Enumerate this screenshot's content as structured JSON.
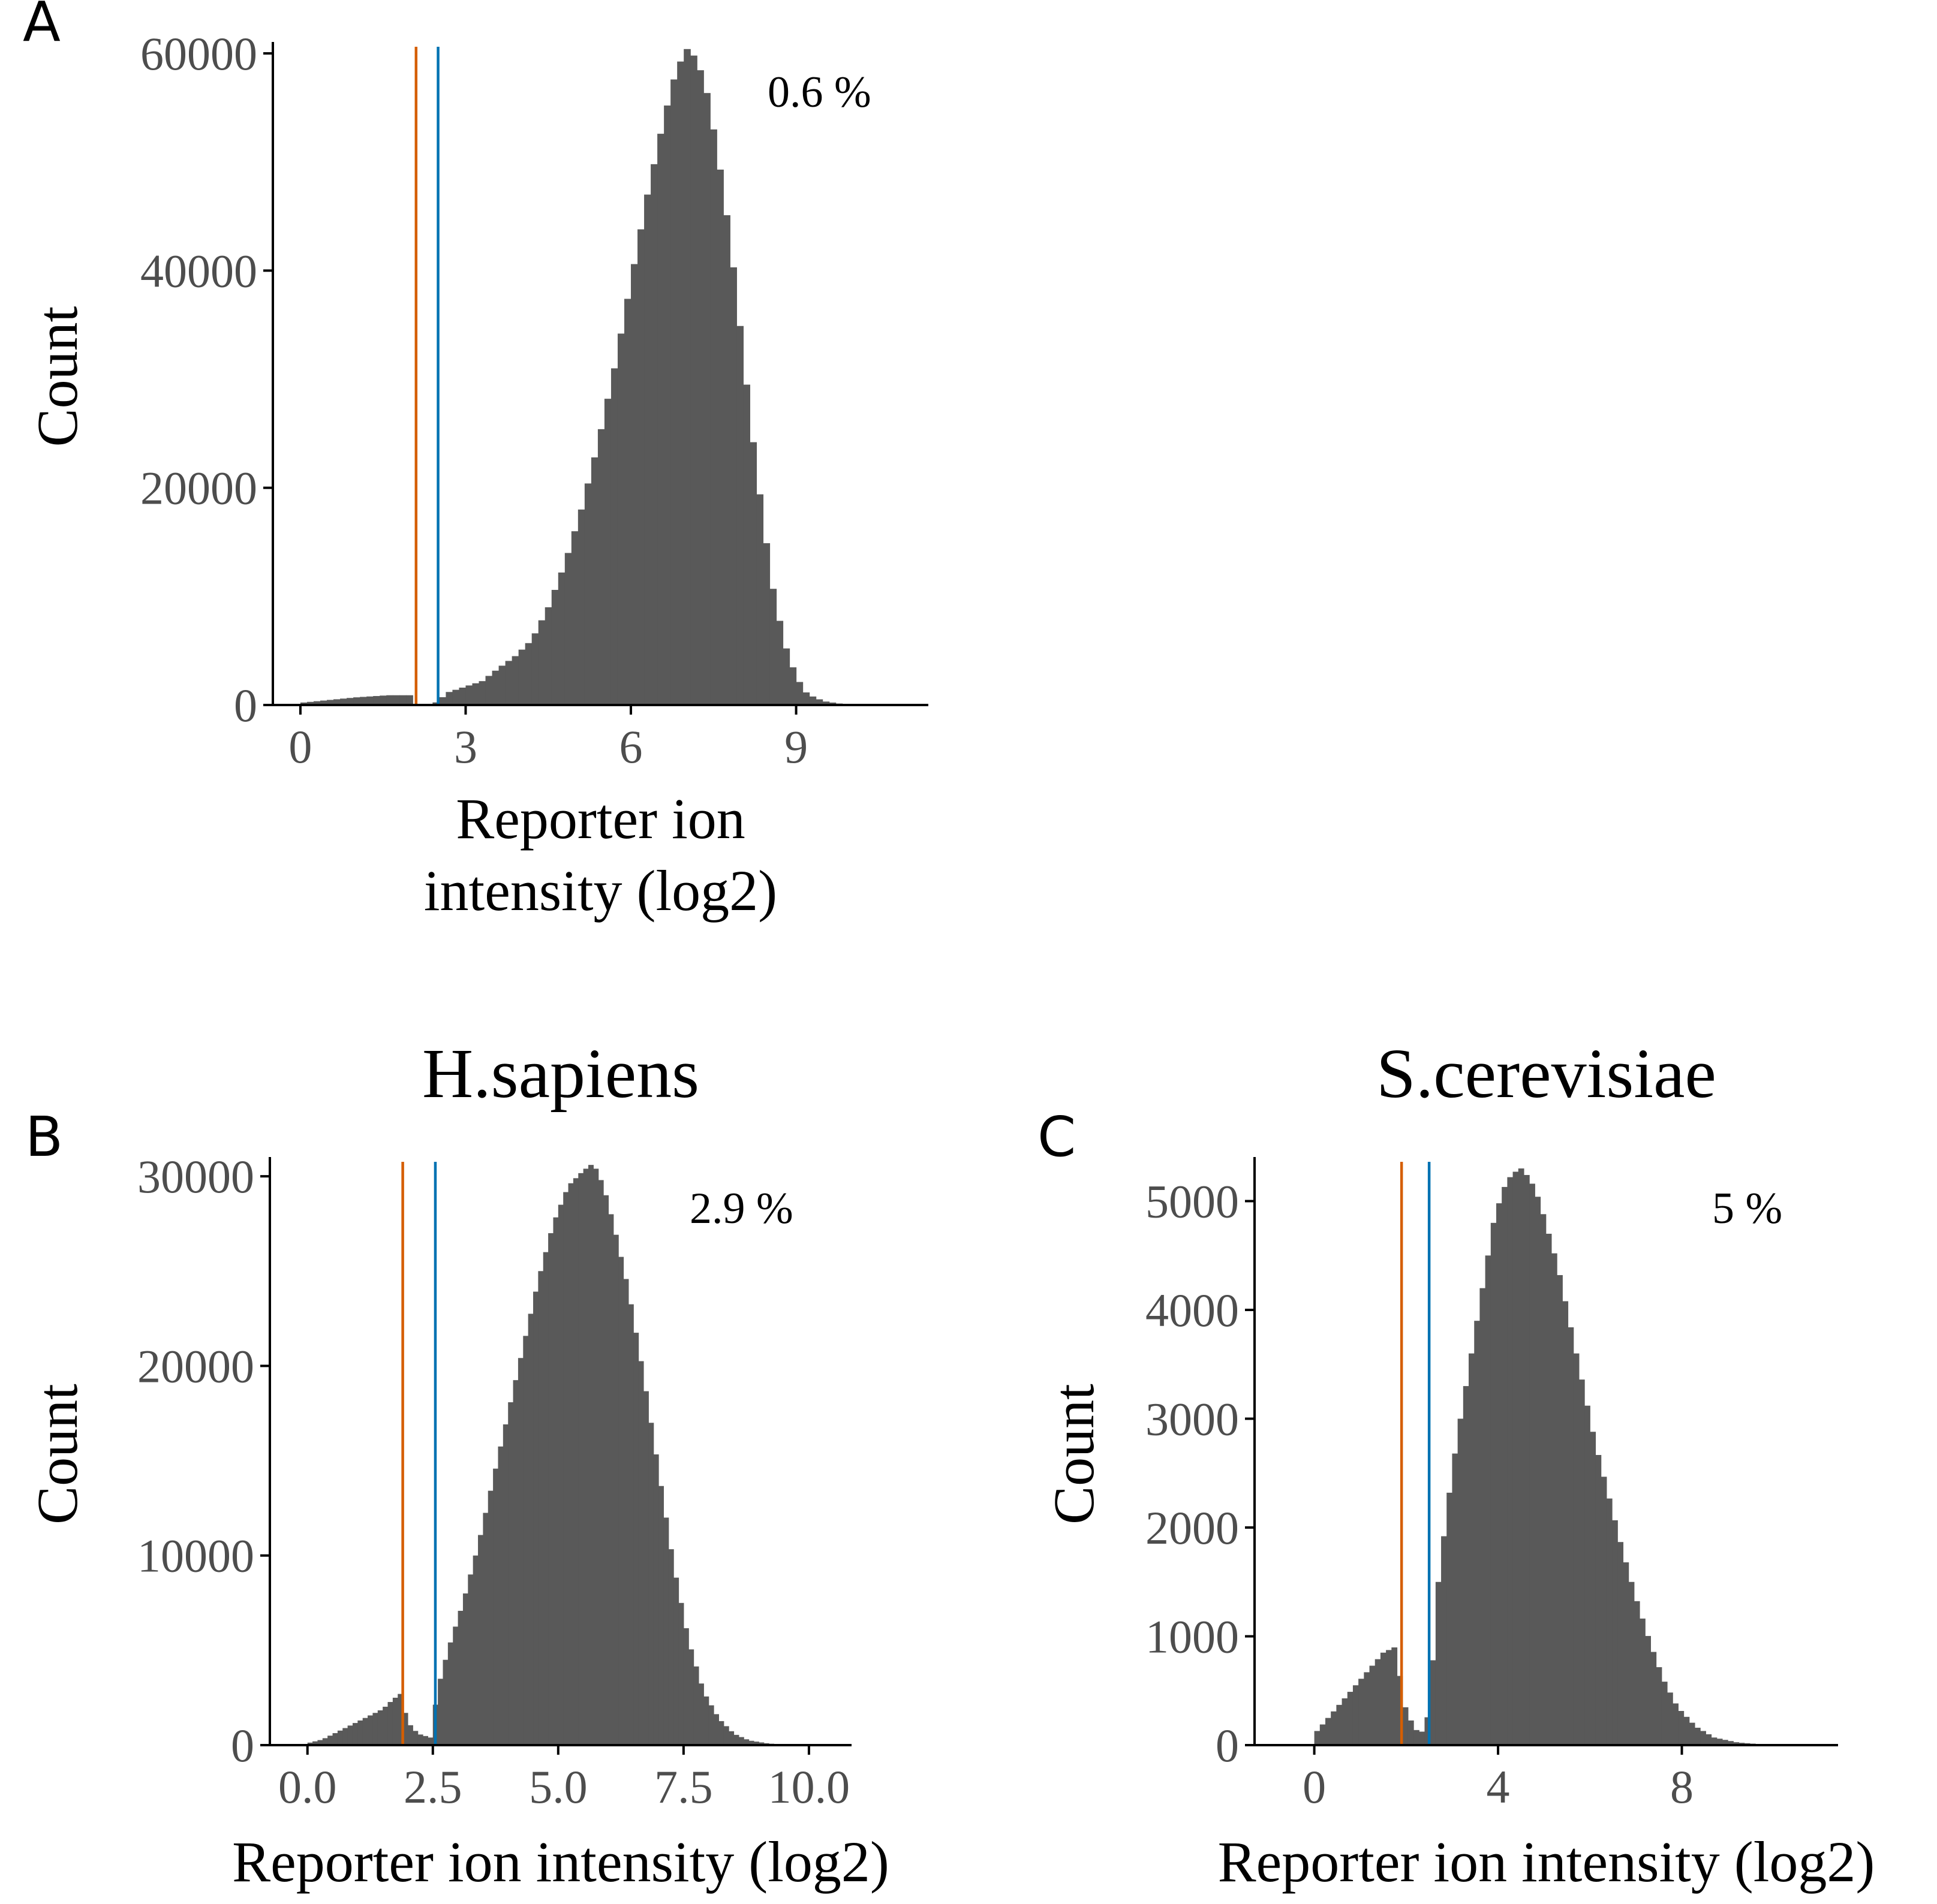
{
  "colors": {
    "bar": "#595959",
    "axis": "#000000",
    "tick_label": "#4d4d4d",
    "orange_line": "#D55E00",
    "blue_line": "#0072B2"
  },
  "chart_data": [
    {
      "id": "A",
      "type": "bar",
      "panel_label": "A",
      "title": "",
      "xlabel": "Reporter ion intensity (log2)",
      "xlabel_lines": [
        "Reporter ion",
        "intensity (log2)"
      ],
      "ylabel": "Count",
      "xlim": [
        -0.5,
        11.4
      ],
      "ylim": [
        0,
        60500
      ],
      "xticks": [
        0,
        3,
        6,
        9
      ],
      "xtick_labels": [
        "0",
        "3",
        "6",
        "9"
      ],
      "yticks": [
        0,
        20000,
        40000,
        60000
      ],
      "ytick_labels": [
        "0",
        "20000",
        "40000",
        "60000"
      ],
      "vlines": [
        2.1,
        2.5
      ],
      "annotation": "0.6 %",
      "bin_width": 0.12,
      "bins": [
        [
          0.0,
          200
        ],
        [
          0.6,
          500
        ],
        [
          1.0,
          700
        ],
        [
          1.3,
          800
        ],
        [
          1.6,
          900
        ],
        [
          2.0,
          900
        ],
        [
          2.1,
          0
        ],
        [
          2.4,
          0
        ],
        [
          2.5,
          400
        ],
        [
          2.7,
          1200
        ],
        [
          3.0,
          1700
        ],
        [
          3.3,
          2200
        ],
        [
          3.6,
          3400
        ],
        [
          3.9,
          4500
        ],
        [
          4.2,
          6000
        ],
        [
          4.5,
          9000
        ],
        [
          4.8,
          13000
        ],
        [
          5.1,
          18000
        ],
        [
          5.4,
          24000
        ],
        [
          5.7,
          31000
        ],
        [
          6.0,
          39000
        ],
        [
          6.3,
          47000
        ],
        [
          6.6,
          54000
        ],
        [
          6.8,
          58000
        ],
        [
          7.0,
          60500
        ],
        [
          7.2,
          59500
        ],
        [
          7.4,
          56000
        ],
        [
          7.6,
          50000
        ],
        [
          7.8,
          43000
        ],
        [
          8.0,
          34000
        ],
        [
          8.2,
          25000
        ],
        [
          8.4,
          17000
        ],
        [
          8.6,
          10000
        ],
        [
          8.8,
          5500
        ],
        [
          9.0,
          2600
        ],
        [
          9.2,
          1000
        ],
        [
          9.5,
          350
        ],
        [
          9.8,
          120
        ],
        [
          10.2,
          40
        ],
        [
          10.6,
          10
        ]
      ]
    },
    {
      "id": "B",
      "type": "bar",
      "panel_label": "B",
      "title": "H.sapiens",
      "xlabel": "Reporter ion intensity (log2)",
      "xlabel_lines": [
        "Reporter ion intensity (log2)"
      ],
      "ylabel": "Count",
      "xlim": [
        -0.75,
        10.85
      ],
      "ylim": [
        0,
        30700
      ],
      "xticks": [
        0.0,
        2.5,
        5.0,
        7.5,
        10.0
      ],
      "xtick_labels": [
        "0.0",
        "2.5",
        "5.0",
        "7.5",
        "10.0"
      ],
      "yticks": [
        0,
        10000,
        20000,
        30000
      ],
      "ytick_labels": [
        "0",
        "10000",
        "20000",
        "30000"
      ],
      "vlines": [
        1.9,
        2.55
      ],
      "annotation": "2.9 %",
      "bin_width": 0.1,
      "bins": [
        [
          0.0,
          100
        ],
        [
          0.3,
          300
        ],
        [
          0.6,
          700
        ],
        [
          0.9,
          1100
        ],
        [
          1.2,
          1500
        ],
        [
          1.5,
          1900
        ],
        [
          1.7,
          2400
        ],
        [
          1.85,
          2700
        ],
        [
          2.0,
          1200
        ],
        [
          2.2,
          600
        ],
        [
          2.45,
          400
        ],
        [
          2.6,
          3000
        ],
        [
          2.8,
          5000
        ],
        [
          3.1,
          7500
        ],
        [
          3.4,
          10500
        ],
        [
          3.7,
          14000
        ],
        [
          4.0,
          17500
        ],
        [
          4.3,
          21000
        ],
        [
          4.6,
          24500
        ],
        [
          4.9,
          27500
        ],
        [
          5.2,
          29500
        ],
        [
          5.5,
          30300
        ],
        [
          5.7,
          30700
        ],
        [
          5.9,
          29500
        ],
        [
          6.1,
          27500
        ],
        [
          6.4,
          24000
        ],
        [
          6.7,
          19500
        ],
        [
          7.0,
          14500
        ],
        [
          7.3,
          9500
        ],
        [
          7.6,
          5500
        ],
        [
          7.9,
          2800
        ],
        [
          8.2,
          1400
        ],
        [
          8.5,
          600
        ],
        [
          8.8,
          250
        ],
        [
          9.2,
          80
        ],
        [
          9.7,
          20
        ]
      ]
    },
    {
      "id": "C",
      "type": "bar",
      "panel_label": "C",
      "title": "S.cerevisiae",
      "xlabel": "Reporter ion intensity (log2)",
      "xlabel_lines": [
        "Reporter ion intensity (log2)"
      ],
      "ylabel": "Count",
      "xlim": [
        -1.3,
        11.4
      ],
      "ylim": [
        0,
        5350
      ],
      "xticks": [
        0,
        4,
        8
      ],
      "xtick_labels": [
        "0",
        "4",
        "8"
      ],
      "yticks": [
        0,
        1000,
        2000,
        3000,
        4000,
        5000
      ],
      "ytick_labels": [
        "0",
        "1000",
        "2000",
        "3000",
        "4000",
        "5000"
      ],
      "vlines": [
        1.9,
        2.5
      ],
      "annotation": "5 %",
      "bin_width": 0.12,
      "bins": [
        [
          0.0,
          100
        ],
        [
          0.3,
          250
        ],
        [
          0.6,
          400
        ],
        [
          0.9,
          550
        ],
        [
          1.2,
          700
        ],
        [
          1.5,
          850
        ],
        [
          1.75,
          900
        ],
        [
          2.0,
          300
        ],
        [
          2.3,
          80
        ],
        [
          2.5,
          300
        ],
        [
          2.7,
          1500
        ],
        [
          2.9,
          2200
        ],
        [
          3.1,
          2800
        ],
        [
          3.3,
          3300
        ],
        [
          3.5,
          3800
        ],
        [
          3.7,
          4300
        ],
        [
          3.9,
          4800
        ],
        [
          4.1,
          5100
        ],
        [
          4.3,
          5250
        ],
        [
          4.5,
          5300
        ],
        [
          4.7,
          5200
        ],
        [
          4.9,
          5000
        ],
        [
          5.1,
          4700
        ],
        [
          5.3,
          4400
        ],
        [
          5.5,
          4000
        ],
        [
          5.7,
          3600
        ],
        [
          5.9,
          3200
        ],
        [
          6.1,
          2800
        ],
        [
          6.4,
          2300
        ],
        [
          6.7,
          1800
        ],
        [
          7.0,
          1350
        ],
        [
          7.3,
          950
        ],
        [
          7.6,
          600
        ],
        [
          7.9,
          350
        ],
        [
          8.3,
          170
        ],
        [
          8.7,
          70
        ],
        [
          9.2,
          25
        ],
        [
          9.8,
          5
        ]
      ]
    }
  ]
}
